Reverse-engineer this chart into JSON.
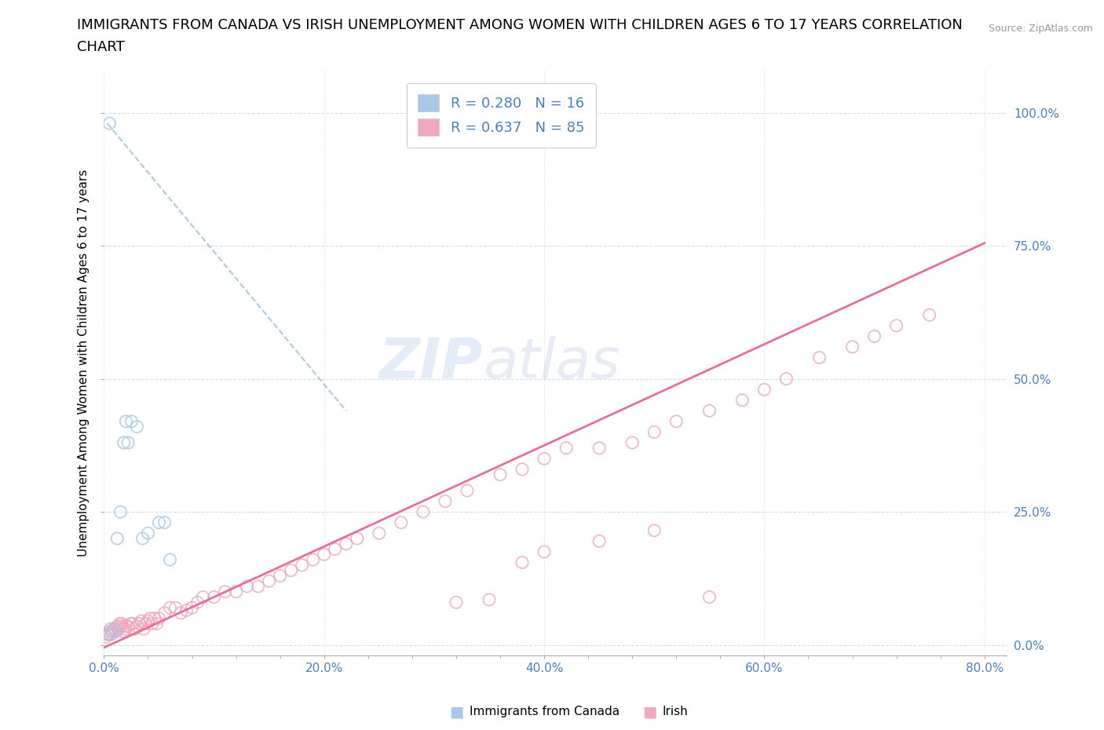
{
  "title_line1": "IMMIGRANTS FROM CANADA VS IRISH UNEMPLOYMENT AMONG WOMEN WITH CHILDREN AGES 6 TO 17 YEARS CORRELATION",
  "title_line2": "CHART",
  "source": "Source: ZipAtlas.com",
  "ylabel": "Unemployment Among Women with Children Ages 6 to 17 years",
  "xlim": [
    0.0,
    0.82
  ],
  "ylim": [
    -0.02,
    1.08
  ],
  "xtick_labels": [
    "0.0%",
    "",
    "",
    "",
    "",
    "20.0%",
    "",
    "",
    "",
    "",
    "40.0%",
    "",
    "",
    "",
    "",
    "60.0%",
    "",
    "",
    "",
    "",
    "80.0%"
  ],
  "xtick_values": [
    0.0,
    0.04,
    0.08,
    0.12,
    0.16,
    0.2,
    0.24,
    0.28,
    0.32,
    0.36,
    0.4,
    0.44,
    0.48,
    0.52,
    0.56,
    0.6,
    0.64,
    0.68,
    0.72,
    0.76,
    0.8
  ],
  "ytick_labels": [
    "0.0%",
    "25.0%",
    "50.0%",
    "75.0%",
    "100.0%"
  ],
  "ytick_values": [
    0.0,
    0.25,
    0.5,
    0.75,
    1.0
  ],
  "legend_R": [
    0.28,
    0.637
  ],
  "legend_N": [
    16,
    85
  ],
  "canada_color": "#a8c8e8",
  "irish_color": "#f0a8bc",
  "canada_line_color": "#8ab4d8",
  "irish_line_color": "#e87090",
  "canada_scatter_x": [
    0.005,
    0.008,
    0.01,
    0.012,
    0.015,
    0.018,
    0.02,
    0.022,
    0.025,
    0.03,
    0.035,
    0.04,
    0.05,
    0.055,
    0.06,
    0.005
  ],
  "canada_scatter_y": [
    0.02,
    0.025,
    0.03,
    0.2,
    0.25,
    0.38,
    0.42,
    0.38,
    0.42,
    0.41,
    0.2,
    0.21,
    0.23,
    0.23,
    0.16,
    0.98
  ],
  "irish_scatter_x": [
    0.002,
    0.003,
    0.004,
    0.005,
    0.006,
    0.007,
    0.008,
    0.009,
    0.01,
    0.011,
    0.012,
    0.013,
    0.014,
    0.015,
    0.016,
    0.017,
    0.018,
    0.019,
    0.02,
    0.022,
    0.024,
    0.026,
    0.028,
    0.03,
    0.032,
    0.034,
    0.036,
    0.038,
    0.04,
    0.042,
    0.044,
    0.046,
    0.048,
    0.05,
    0.055,
    0.06,
    0.065,
    0.07,
    0.075,
    0.08,
    0.085,
    0.09,
    0.1,
    0.11,
    0.12,
    0.13,
    0.14,
    0.15,
    0.16,
    0.17,
    0.18,
    0.19,
    0.2,
    0.21,
    0.22,
    0.23,
    0.25,
    0.27,
    0.29,
    0.31,
    0.33,
    0.36,
    0.38,
    0.4,
    0.42,
    0.45,
    0.48,
    0.5,
    0.52,
    0.55,
    0.58,
    0.6,
    0.62,
    0.65,
    0.68,
    0.7,
    0.72,
    0.75,
    0.38,
    0.4,
    0.45,
    0.5,
    0.32,
    0.35,
    0.55
  ],
  "irish_scatter_y": [
    0.015,
    0.02,
    0.02,
    0.025,
    0.03,
    0.02,
    0.025,
    0.03,
    0.03,
    0.025,
    0.035,
    0.03,
    0.04,
    0.035,
    0.04,
    0.035,
    0.025,
    0.03,
    0.035,
    0.035,
    0.04,
    0.04,
    0.03,
    0.035,
    0.04,
    0.045,
    0.03,
    0.04,
    0.045,
    0.05,
    0.04,
    0.05,
    0.04,
    0.05,
    0.06,
    0.07,
    0.07,
    0.06,
    0.065,
    0.07,
    0.08,
    0.09,
    0.09,
    0.1,
    0.1,
    0.11,
    0.11,
    0.12,
    0.13,
    0.14,
    0.15,
    0.16,
    0.17,
    0.18,
    0.19,
    0.2,
    0.21,
    0.23,
    0.25,
    0.27,
    0.29,
    0.32,
    0.33,
    0.35,
    0.37,
    0.37,
    0.38,
    0.4,
    0.42,
    0.44,
    0.46,
    0.48,
    0.5,
    0.54,
    0.56,
    0.58,
    0.6,
    0.62,
    0.155,
    0.175,
    0.195,
    0.215,
    0.08,
    0.085,
    0.09
  ],
  "canada_trend_x": [
    0.003,
    0.22
  ],
  "canada_trend_y": [
    0.98,
    0.44
  ],
  "irish_trend_x": [
    0.0,
    0.8
  ],
  "irish_trend_y": [
    -0.005,
    0.755
  ],
  "watermark_zip": "ZIP",
  "watermark_atlas": "atlas",
  "background_color": "#ffffff",
  "grid_color": "#d0d8e8",
  "title_fontsize": 13,
  "label_fontsize": 11,
  "tick_fontsize": 11,
  "legend_fontsize": 13
}
